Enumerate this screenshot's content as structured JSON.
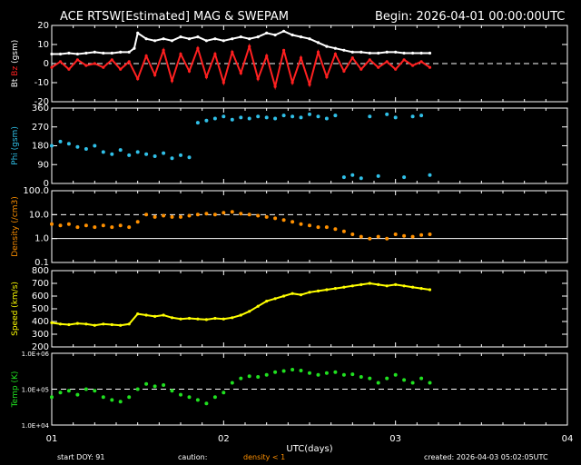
{
  "header": {
    "title": "ACE RTSW[Estimated] MAG & SWEPAM",
    "begin": "Begin: 2026-04-01 00:00:00UTC"
  },
  "footer": {
    "start_doy": "start DOY:  91",
    "caution": "caution:",
    "density_note": "density < 1",
    "created": "created: 2026-04-03 05:02:05UTC"
  },
  "colors": {
    "bt": "#ffffff",
    "bz": "#ff2020",
    "phi": "#30c0e8",
    "density": "#ff9000",
    "speed": "#ffff00",
    "temp": "#20e020",
    "axis": "#ffffff",
    "background": "#000000"
  },
  "chart_data": [
    {
      "type": "line",
      "panel": "mag",
      "ylabel_parts": [
        "Bt",
        "Bz",
        "(gsm)"
      ],
      "ylim": [
        -20,
        20
      ],
      "yticks": [
        -20,
        -10,
        0,
        10,
        20
      ],
      "ref_lines": [
        0
      ],
      "xlim": [
        1,
        4
      ],
      "series": [
        {
          "name": "Bt",
          "x": [
            1.0,
            1.05,
            1.1,
            1.15,
            1.2,
            1.25,
            1.3,
            1.35,
            1.4,
            1.45,
            1.48,
            1.5,
            1.55,
            1.6,
            1.65,
            1.7,
            1.75,
            1.8,
            1.85,
            1.9,
            1.95,
            2.0,
            2.05,
            2.1,
            2.15,
            2.2,
            2.25,
            2.3,
            2.35,
            2.4,
            2.45,
            2.5,
            2.55,
            2.6,
            2.65,
            2.7,
            2.75,
            2.8,
            2.85,
            2.9,
            2.95,
            3.0,
            3.05,
            3.1,
            3.15,
            3.2
          ],
          "values": [
            5,
            5,
            5.5,
            5,
            5.5,
            6,
            5.5,
            5.5,
            6,
            6,
            8,
            16,
            13,
            12,
            13,
            12,
            14,
            13,
            14,
            12,
            13,
            12,
            13,
            14,
            13,
            14,
            16,
            15,
            17,
            15,
            14,
            13,
            11,
            9,
            8,
            7,
            6,
            6,
            5.5,
            5.5,
            6,
            6,
            5.5,
            5.5,
            5.5,
            5.5
          ]
        },
        {
          "name": "Bz",
          "x": [
            1.0,
            1.05,
            1.1,
            1.15,
            1.2,
            1.25,
            1.3,
            1.35,
            1.4,
            1.45,
            1.5,
            1.55,
            1.6,
            1.65,
            1.7,
            1.75,
            1.8,
            1.85,
            1.9,
            1.95,
            2.0,
            2.05,
            2.1,
            2.15,
            2.2,
            2.25,
            2.3,
            2.35,
            2.4,
            2.45,
            2.5,
            2.55,
            2.6,
            2.65,
            2.7,
            2.75,
            2.8,
            2.85,
            2.9,
            2.95,
            3.0,
            3.05,
            3.1,
            3.15,
            3.2
          ],
          "values": [
            -2,
            1,
            -3,
            2,
            -1,
            0,
            -2,
            2,
            -3,
            1,
            -8,
            4,
            -6,
            7,
            -9,
            5,
            -4,
            8,
            -7,
            5,
            -10,
            6,
            -5,
            9,
            -8,
            4,
            -12,
            7,
            -10,
            3,
            -11,
            6,
            -7,
            5,
            -4,
            3,
            -3,
            2,
            -2,
            1,
            -3,
            2,
            -1,
            1,
            -2
          ]
        }
      ]
    },
    {
      "type": "scatter",
      "panel": "phi",
      "ylabel": "Phi (gsm)",
      "ylim": [
        0,
        360
      ],
      "yticks": [
        0,
        90,
        180,
        270,
        360
      ],
      "xlim": [
        1,
        4
      ],
      "series": [
        {
          "name": "Phi",
          "x": [
            1.0,
            1.05,
            1.1,
            1.15,
            1.2,
            1.25,
            1.3,
            1.35,
            1.4,
            1.45,
            1.5,
            1.55,
            1.6,
            1.65,
            1.7,
            1.75,
            1.8,
            1.85,
            1.9,
            1.95,
            2.0,
            2.05,
            2.1,
            2.15,
            2.2,
            2.25,
            2.3,
            2.35,
            2.4,
            2.45,
            2.5,
            2.55,
            2.6,
            2.65,
            2.7,
            2.75,
            2.8,
            2.85,
            2.9,
            2.95,
            3.0,
            3.05,
            3.1,
            3.15,
            3.2
          ],
          "values": [
            180,
            200,
            190,
            175,
            165,
            180,
            150,
            140,
            160,
            135,
            150,
            140,
            130,
            145,
            120,
            135,
            125,
            290,
            300,
            310,
            320,
            305,
            315,
            310,
            320,
            315,
            310,
            325,
            320,
            315,
            330,
            320,
            310,
            325,
            30,
            40,
            25,
            320,
            35,
            330,
            315,
            30,
            320,
            325,
            40
          ]
        }
      ]
    },
    {
      "type": "scatter",
      "panel": "density",
      "ylabel": "Density (/cm3)",
      "yscale": "log",
      "ylim": [
        0.1,
        100
      ],
      "yticks": [
        0.1,
        1.0,
        10.0,
        100.0
      ],
      "ytick_labels": [
        "0.1",
        "1.0",
        "10.0",
        "100.0"
      ],
      "ref_lines": [
        1.0,
        10.0
      ],
      "xlim": [
        1,
        4
      ],
      "series": [
        {
          "name": "Density",
          "x": [
            1.0,
            1.05,
            1.1,
            1.15,
            1.2,
            1.25,
            1.3,
            1.35,
            1.4,
            1.45,
            1.5,
            1.55,
            1.6,
            1.65,
            1.7,
            1.75,
            1.8,
            1.85,
            1.9,
            1.95,
            2.0,
            2.05,
            2.1,
            2.15,
            2.2,
            2.25,
            2.3,
            2.35,
            2.4,
            2.45,
            2.5,
            2.55,
            2.6,
            2.65,
            2.7,
            2.75,
            2.8,
            2.85,
            2.9,
            2.95,
            3.0,
            3.05,
            3.1,
            3.15,
            3.2
          ],
          "values": [
            4,
            3.5,
            4,
            3,
            3.5,
            3,
            3.5,
            3,
            3.5,
            3,
            5,
            10,
            8,
            9,
            8,
            8,
            9,
            10,
            11,
            10,
            12,
            13,
            11,
            10,
            9,
            8,
            7,
            6,
            5,
            4,
            3.5,
            3,
            3,
            2.5,
            2,
            1.5,
            1.2,
            1.0,
            1.2,
            1.0,
            1.5,
            1.3,
            1.2,
            1.4,
            1.5
          ]
        }
      ]
    },
    {
      "type": "line",
      "panel": "speed",
      "ylabel": "Speed (km/s)",
      "ylim": [
        200,
        800
      ],
      "yticks": [
        200,
        300,
        400,
        500,
        600,
        700,
        800
      ],
      "xlim": [
        1,
        4
      ],
      "series": [
        {
          "name": "Speed",
          "x": [
            1.0,
            1.05,
            1.1,
            1.15,
            1.2,
            1.25,
            1.3,
            1.35,
            1.4,
            1.45,
            1.5,
            1.55,
            1.6,
            1.65,
            1.7,
            1.75,
            1.8,
            1.85,
            1.9,
            1.95,
            2.0,
            2.05,
            2.1,
            2.15,
            2.2,
            2.25,
            2.3,
            2.35,
            2.4,
            2.45,
            2.5,
            2.55,
            2.6,
            2.65,
            2.7,
            2.75,
            2.8,
            2.85,
            2.9,
            2.95,
            3.0,
            3.05,
            3.1,
            3.15,
            3.2
          ],
          "values": [
            390,
            380,
            375,
            385,
            380,
            370,
            380,
            375,
            370,
            380,
            460,
            450,
            440,
            450,
            430,
            420,
            425,
            420,
            415,
            425,
            420,
            430,
            450,
            480,
            520,
            560,
            580,
            600,
            620,
            610,
            630,
            640,
            650,
            660,
            670,
            680,
            690,
            700,
            690,
            680,
            690,
            680,
            670,
            660,
            650
          ]
        }
      ]
    },
    {
      "type": "scatter",
      "panel": "temp",
      "ylabel": "Temp (K)",
      "yscale": "log",
      "ylim": [
        10000,
        1000000
      ],
      "yticks": [
        10000,
        100000,
        1000000
      ],
      "ytick_labels": [
        "1.0E+04",
        "1.0E+05",
        "1.0E+06"
      ],
      "ref_lines": [
        100000
      ],
      "xlim": [
        1,
        4
      ],
      "xticks": [
        1,
        2,
        3,
        4
      ],
      "xtick_labels": [
        "01",
        "02",
        "03",
        "04"
      ],
      "xlabel": "UTC(days)",
      "series": [
        {
          "name": "Temp",
          "x": [
            1.0,
            1.05,
            1.1,
            1.15,
            1.2,
            1.25,
            1.3,
            1.35,
            1.4,
            1.45,
            1.5,
            1.55,
            1.6,
            1.65,
            1.7,
            1.75,
            1.8,
            1.85,
            1.9,
            1.95,
            2.0,
            2.05,
            2.1,
            2.15,
            2.2,
            2.25,
            2.3,
            2.35,
            2.4,
            2.45,
            2.5,
            2.55,
            2.6,
            2.65,
            2.7,
            2.75,
            2.8,
            2.85,
            2.9,
            2.95,
            3.0,
            3.05,
            3.1,
            3.15,
            3.2
          ],
          "values": [
            60000,
            80000,
            90000,
            70000,
            100000,
            90000,
            60000,
            50000,
            45000,
            60000,
            100000,
            140000,
            120000,
            130000,
            90000,
            70000,
            60000,
            50000,
            40000,
            60000,
            80000,
            150000,
            200000,
            230000,
            220000,
            250000,
            300000,
            320000,
            350000,
            330000,
            280000,
            250000,
            280000,
            300000,
            250000,
            260000,
            220000,
            200000,
            150000,
            200000,
            250000,
            180000,
            150000,
            200000,
            150000
          ]
        }
      ]
    }
  ]
}
